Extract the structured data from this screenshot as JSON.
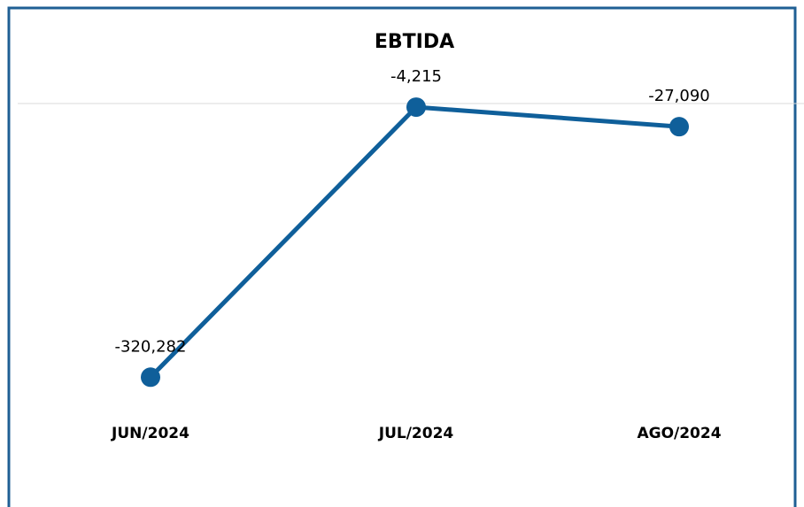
{
  "chart_data": {
    "type": "line",
    "title": "EBTIDA",
    "categories": [
      "JUN/2024",
      "JUL/2024",
      "AGO/2024"
    ],
    "series": [
      {
        "name": "EBTIDA",
        "color": "#0f5f9a",
        "values": [
          -320282,
          -4215,
          -27090
        ],
        "value_labels": [
          "-320,282",
          "-4,215",
          "-27,090"
        ]
      }
    ],
    "ylim": [
      -350000,
      0
    ],
    "yticks": [
      0
    ],
    "grid": true
  }
}
